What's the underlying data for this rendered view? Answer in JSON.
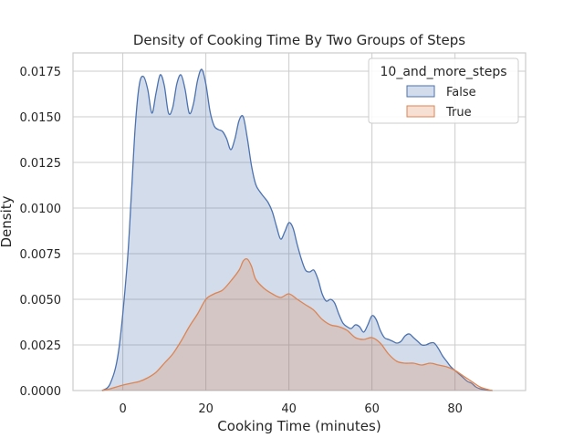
{
  "chart_data": {
    "type": "area",
    "title": "Density of Cooking Time By Two Groups of Steps",
    "xlabel": "Cooking Time (minutes)",
    "ylabel": "Density",
    "xlim": [
      -12,
      97
    ],
    "ylim": [
      0,
      0.0185
    ],
    "xticks": [
      "0",
      "20",
      "40",
      "60",
      "80"
    ],
    "xtick_values": [
      0,
      20,
      40,
      60,
      80
    ],
    "yticks": [
      "0.0000",
      "0.0025",
      "0.0050",
      "0.0075",
      "0.0100",
      "0.0125",
      "0.0150",
      "0.0175"
    ],
    "ytick_values": [
      0,
      0.0025,
      0.005,
      0.0075,
      0.01,
      0.0125,
      0.015,
      0.0175
    ],
    "grid": true,
    "legend": {
      "title": "10_and_more_steps",
      "placement": "top-right"
    },
    "series": [
      {
        "name": "False",
        "line_color": "#4c72b0",
        "fill_color": "#4c72b0",
        "x": [
          -5,
          -3,
          -1,
          1,
          2,
          3,
          4,
          5,
          6,
          7,
          8,
          9,
          10,
          11,
          12,
          13,
          14,
          15,
          16,
          17,
          18,
          19,
          20,
          21,
          22,
          23,
          24,
          25,
          26,
          27,
          28,
          29,
          30,
          31,
          32,
          33,
          34,
          35,
          36,
          37,
          38,
          39,
          40,
          41,
          42,
          43,
          44,
          45,
          46,
          47,
          48,
          49,
          50,
          51,
          52,
          53,
          54,
          55,
          56,
          57,
          58,
          59,
          60,
          61,
          62,
          63,
          64,
          65,
          66,
          67,
          68,
          69,
          70,
          71,
          72,
          73,
          74,
          75,
          76,
          77,
          78,
          79,
          80,
          81,
          82,
          83,
          84,
          85,
          86,
          87,
          88,
          89
        ],
        "y": [
          0.0,
          0.0004,
          0.0022,
          0.0068,
          0.0105,
          0.0145,
          0.0168,
          0.0172,
          0.0165,
          0.0152,
          0.0163,
          0.0173,
          0.0167,
          0.0152,
          0.0155,
          0.0168,
          0.0173,
          0.0165,
          0.0152,
          0.0157,
          0.017,
          0.0176,
          0.0168,
          0.0153,
          0.0145,
          0.0143,
          0.0142,
          0.0138,
          0.0132,
          0.0138,
          0.0148,
          0.015,
          0.0138,
          0.0123,
          0.0113,
          0.0109,
          0.0106,
          0.0103,
          0.0098,
          0.009,
          0.0083,
          0.0087,
          0.0092,
          0.0089,
          0.008,
          0.0072,
          0.0066,
          0.0065,
          0.0066,
          0.0061,
          0.0053,
          0.0049,
          0.005,
          0.0048,
          0.0042,
          0.0037,
          0.0035,
          0.0034,
          0.0036,
          0.0035,
          0.0032,
          0.0036,
          0.0041,
          0.0039,
          0.0033,
          0.0029,
          0.0028,
          0.0027,
          0.0026,
          0.0027,
          0.003,
          0.0031,
          0.0029,
          0.0027,
          0.0025,
          0.0025,
          0.0026,
          0.0026,
          0.0023,
          0.0019,
          0.0016,
          0.0013,
          0.0011,
          0.0009,
          0.0007,
          0.0005,
          0.0004,
          0.0002,
          0.0001,
          5e-05,
          2e-05,
          0.0
        ]
      },
      {
        "name": "True",
        "line_color": "#dd8452",
        "fill_color": "#dd8452",
        "x": [
          -5,
          -3,
          0,
          2,
          4,
          6,
          8,
          10,
          12,
          14,
          16,
          18,
          20,
          22,
          24,
          26,
          28,
          29,
          30,
          31,
          32,
          34,
          36,
          38,
          40,
          42,
          44,
          46,
          48,
          50,
          52,
          54,
          56,
          58,
          60,
          62,
          64,
          66,
          68,
          70,
          72,
          74,
          76,
          78,
          80,
          82,
          84,
          86,
          88,
          89
        ],
        "y": [
          0.0,
          0.0001,
          0.0003,
          0.0004,
          0.0005,
          0.0007,
          0.001,
          0.0015,
          0.002,
          0.0027,
          0.0035,
          0.0042,
          0.005,
          0.0053,
          0.0055,
          0.006,
          0.0066,
          0.0071,
          0.0072,
          0.0068,
          0.0061,
          0.0056,
          0.0053,
          0.0051,
          0.0053,
          0.005,
          0.0047,
          0.0044,
          0.0039,
          0.0036,
          0.0035,
          0.0033,
          0.0029,
          0.0028,
          0.0029,
          0.0026,
          0.002,
          0.0016,
          0.0015,
          0.0015,
          0.0014,
          0.0015,
          0.0014,
          0.0013,
          0.0011,
          0.0008,
          0.0005,
          0.0002,
          5e-05,
          0.0
        ]
      }
    ]
  }
}
